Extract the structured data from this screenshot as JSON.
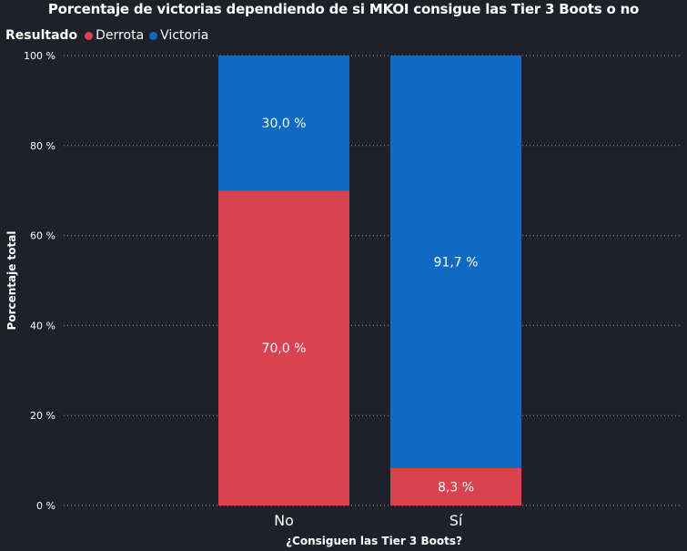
{
  "chart_data": {
    "type": "bar",
    "stacked": true,
    "title": "Porcentaje de victorias dependiendo de si MKOI consigue las Tier 3 Boots o no",
    "xlabel": "¿Consiguen las Tier 3 Boots?",
    "ylabel": "Porcentaje total",
    "legend_title": "Resultado",
    "legend_position": "top-left",
    "grid": true,
    "ylim": [
      0,
      100
    ],
    "yticks": [
      0,
      20,
      40,
      60,
      80,
      100
    ],
    "ytick_labels": [
      "0 %",
      "20 %",
      "40 %",
      "60 %",
      "80 %",
      "100 %"
    ],
    "categories": [
      "No",
      "Sí"
    ],
    "series": [
      {
        "name": "Derrota",
        "color": "#d9434f",
        "values": [
          70.0,
          8.3
        ],
        "labels": [
          "70,0 %",
          "8,3 %"
        ]
      },
      {
        "name": "Victoria",
        "color": "#0f6ac3",
        "values": [
          30.0,
          91.7
        ],
        "labels": [
          "30,0 %",
          "91,7 %"
        ]
      }
    ]
  }
}
